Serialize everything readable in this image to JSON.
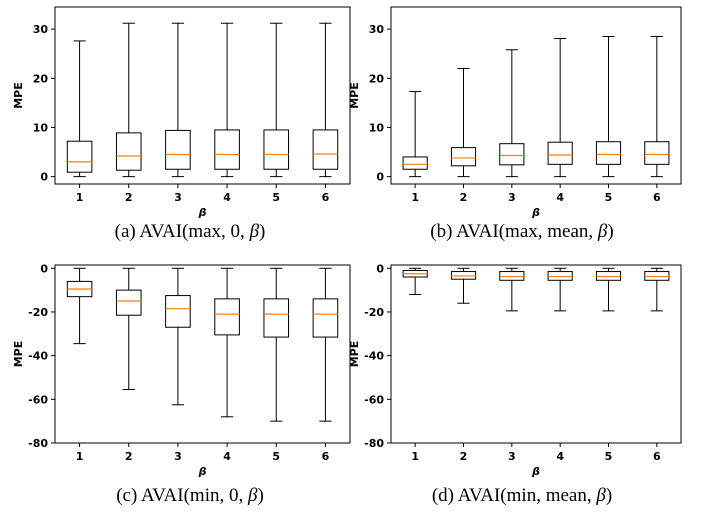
{
  "chart_data": [
    {
      "type": "box",
      "panel": "a",
      "caption": {
        "prefix": "(a) AVAI(max, 0, ",
        "symbol": "β",
        "suffix": ")"
      },
      "xlabel": "β",
      "ylabel": "MPE",
      "categories": [
        "1",
        "2",
        "3",
        "4",
        "5",
        "6"
      ],
      "ylim": [
        -1.5,
        34.5
      ],
      "yticks": [
        0,
        10,
        20,
        30
      ],
      "boxes": [
        {
          "min": 0.0,
          "q1": 0.9,
          "median": 3.0,
          "q3": 7.2,
          "max": 27.6
        },
        {
          "min": 0.0,
          "q1": 1.3,
          "median": 4.2,
          "q3": 8.9,
          "max": 31.2
        },
        {
          "min": 0.0,
          "q1": 1.5,
          "median": 4.5,
          "q3": 9.4,
          "max": 31.2
        },
        {
          "min": 0.0,
          "q1": 1.5,
          "median": 4.5,
          "q3": 9.5,
          "max": 31.2
        },
        {
          "min": 0.0,
          "q1": 1.5,
          "median": 4.5,
          "q3": 9.5,
          "max": 31.2
        },
        {
          "min": 0.0,
          "q1": 1.5,
          "median": 4.6,
          "q3": 9.5,
          "max": 31.2
        }
      ]
    },
    {
      "type": "box",
      "panel": "b",
      "caption": {
        "prefix": "(b) AVAI(max, mean, ",
        "symbol": "β",
        "suffix": ")"
      },
      "xlabel": "β",
      "ylabel": "MPE",
      "categories": [
        "1",
        "2",
        "3",
        "4",
        "5",
        "6"
      ],
      "ylim": [
        -1.5,
        34.5
      ],
      "yticks": [
        0,
        10,
        20,
        30
      ],
      "boxes": [
        {
          "min": 0.0,
          "q1": 1.5,
          "median": 2.5,
          "q3": 4.0,
          "max": 17.3
        },
        {
          "min": 0.0,
          "q1": 2.2,
          "median": 3.8,
          "q3": 5.9,
          "max": 22.0
        },
        {
          "min": 0.0,
          "q1": 2.4,
          "median": 4.3,
          "q3": 6.7,
          "max": 25.8
        },
        {
          "min": 0.0,
          "q1": 2.5,
          "median": 4.4,
          "q3": 7.0,
          "max": 28.1
        },
        {
          "min": 0.0,
          "q1": 2.5,
          "median": 4.5,
          "q3": 7.1,
          "max": 28.5
        },
        {
          "min": 0.0,
          "q1": 2.5,
          "median": 4.5,
          "q3": 7.1,
          "max": 28.5
        }
      ]
    },
    {
      "type": "box",
      "panel": "c",
      "caption": {
        "prefix": "(c) AVAI(min, 0, ",
        "symbol": "β",
        "suffix": ")"
      },
      "xlabel": "β",
      "ylabel": "MPE",
      "categories": [
        "1",
        "2",
        "3",
        "4",
        "5",
        "6"
      ],
      "ylim": [
        -80,
        1.5
      ],
      "yticks": [
        0,
        -20,
        -40,
        -60,
        -80
      ],
      "boxes": [
        {
          "min": -34.5,
          "q1": -13.0,
          "median": -9.5,
          "q3": -6.0,
          "max": 0.0
        },
        {
          "min": -55.5,
          "q1": -21.5,
          "median": -15.0,
          "q3": -10.0,
          "max": 0.0
        },
        {
          "min": -62.5,
          "q1": -27.0,
          "median": -18.5,
          "q3": -12.5,
          "max": 0.0
        },
        {
          "min": -68.0,
          "q1": -30.5,
          "median": -21.0,
          "q3": -14.0,
          "max": 0.0
        },
        {
          "min": -70.0,
          "q1": -31.5,
          "median": -21.0,
          "q3": -14.0,
          "max": 0.0
        },
        {
          "min": -70.0,
          "q1": -31.5,
          "median": -21.0,
          "q3": -14.0,
          "max": 0.0
        }
      ]
    },
    {
      "type": "box",
      "panel": "d",
      "caption": {
        "prefix": "(d) AVAI(min, mean, ",
        "symbol": "β",
        "suffix": ")"
      },
      "xlabel": "β",
      "ylabel": "MPE",
      "categories": [
        "1",
        "2",
        "3",
        "4",
        "5",
        "6"
      ],
      "ylim": [
        -80,
        1.5
      ],
      "yticks": [
        0,
        -20,
        -40,
        -60,
        -80
      ],
      "boxes": [
        {
          "min": -12.0,
          "q1": -4.0,
          "median": -2.5,
          "q3": -1.0,
          "max": 0.0
        },
        {
          "min": -16.0,
          "q1": -5.0,
          "median": -3.5,
          "q3": -1.5,
          "max": 0.0
        },
        {
          "min": -19.5,
          "q1": -5.5,
          "median": -3.8,
          "q3": -1.5,
          "max": 0.0
        },
        {
          "min": -19.5,
          "q1": -5.5,
          "median": -3.8,
          "q3": -1.5,
          "max": 0.0
        },
        {
          "min": -19.5,
          "q1": -5.5,
          "median": -3.8,
          "q3": -1.5,
          "max": 0.0
        },
        {
          "min": -19.5,
          "q1": -5.5,
          "median": -3.8,
          "q3": -1.5,
          "max": 0.0
        }
      ]
    }
  ],
  "style": {
    "median_color": "#ff7f0e",
    "line_color": "#000000"
  }
}
